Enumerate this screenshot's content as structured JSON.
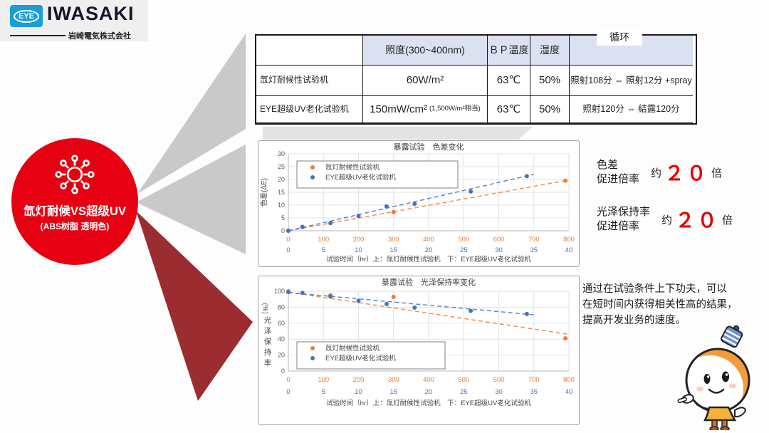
{
  "colors": {
    "brand_red": "#e60012",
    "logo_blue": "#1b9dd9",
    "maroon_triangle": "#9b2d30",
    "gray_triangle": "#c9c9c9",
    "table_header": "#dce1f2",
    "series_orange": "#ED7D31",
    "series_blue": "#4472C4",
    "rate_red": "#e60000"
  },
  "logo": {
    "eye": "EYE",
    "brand": "IWASAKI",
    "company": "岩崎電気株式会社"
  },
  "badge": {
    "title": "氙灯耐候VS超级UV",
    "subtitle": "(ABS树脂 透明色)"
  },
  "table": {
    "headers": {
      "col1": "",
      "illuminance": "照度(300~400nm)",
      "bp_temp": "ＢＰ温度",
      "humidity": "湿度",
      "cycle": "循环"
    },
    "rows": [
      {
        "label": "氙灯耐候性试验机",
        "illuminance": "60W/m²",
        "illuminance_note": "",
        "bp_temp": "63℃",
        "humidity": "50%",
        "cycle": "照射108分 ⇔ 照射12分 +spray"
      },
      {
        "label": "EYE超级UV老化试验机",
        "illuminance": "150mW/cm²",
        "illuminance_note": "(1,500W/m²相当)",
        "bp_temp": "63℃",
        "humidity": "50%",
        "cycle": "照射120分 ⇔ 結露120分"
      }
    ]
  },
  "rates": [
    {
      "labels": "色差\n促进倍率",
      "prefix": "约",
      "value": "２０",
      "suffix": "倍"
    },
    {
      "labels": "光泽保持率\n促进倍率",
      "prefix": "约",
      "value": "２０",
      "suffix": "倍"
    }
  ],
  "note": "通过在试验条件上下功夫，可以\n在短时间内获得相关性高的结果，\n提高开发业务的速度。",
  "chart_data": [
    {
      "type": "scatter",
      "title": "暴露试验　色差变化",
      "ylabel": "色差(ΔE)",
      "ylabel_mode": "rotated",
      "xlabel": "试验时间（hr）上：氙灯耐候性试验机　下：EYE超级UV老化试验机",
      "ylim": [
        0,
        30
      ],
      "yticks": [
        0,
        5,
        10,
        15,
        20,
        25,
        30
      ],
      "grid": true,
      "legend_pos": "top-left",
      "x_top": {
        "range": [
          0,
          800
        ],
        "ticks": [
          0,
          100,
          200,
          300,
          400,
          500,
          600,
          700,
          800
        ],
        "color": "#ED7D31"
      },
      "x_bottom": {
        "range": [
          0,
          40
        ],
        "ticks": [
          0,
          5,
          10,
          15,
          20,
          25,
          30,
          35,
          40
        ],
        "color": "#4472C4"
      },
      "series": [
        {
          "name": "氙灯耐候性试验机",
          "color": "#ED7D31",
          "x_scale": "top",
          "x": [
            0,
            40,
            300,
            790
          ],
          "y": [
            0,
            1.5,
            7.3,
            19.5
          ],
          "trend": {
            "x1": 0,
            "y1": 0,
            "x2": 800,
            "y2": 19.8
          }
        },
        {
          "name": "EYE超级UV老化试验机",
          "color": "#4472C4",
          "x_scale": "bottom",
          "x": [
            0,
            2,
            6,
            10,
            14,
            18,
            26,
            34
          ],
          "y": [
            0,
            1.5,
            3,
            5.8,
            9.5,
            10.5,
            15.3,
            21.3
          ],
          "trend": {
            "x1": 0,
            "y1": 0,
            "x2": 35,
            "y2": 22
          }
        }
      ]
    },
    {
      "type": "scatter",
      "title": "暴露试验　光泽保持率变化",
      "ylabel": "（%） 光泽保持率",
      "ylabel_mode": "stacked",
      "xlabel": "试验时间（hr）上：氙灯耐候性试验机　下：EYE超级UV老化试验机",
      "ylim": [
        0,
        100
      ],
      "yticks": [
        0,
        20,
        40,
        60,
        80,
        100
      ],
      "grid": true,
      "legend_pos": "bottom-left",
      "x_top": {
        "range": [
          0,
          800
        ],
        "ticks": [
          0,
          100,
          200,
          300,
          400,
          500,
          600,
          700,
          800
        ],
        "color": "#ED7D31"
      },
      "x_bottom": {
        "range": [
          0,
          40
        ],
        "ticks": [
          0,
          5,
          10,
          15,
          20,
          25,
          30,
          35,
          40
        ],
        "color": "#4472C4"
      },
      "series": [
        {
          "name": "氙灯耐候性试验机",
          "color": "#ED7D31",
          "x_scale": "top",
          "x": [
            0,
            120,
            300,
            790
          ],
          "y": [
            100,
            95,
            93,
            41
          ],
          "trend": {
            "x1": 0,
            "y1": 99,
            "x2": 800,
            "y2": 46
          }
        },
        {
          "name": "EYE超级UV老化试验机",
          "color": "#4472C4",
          "x_scale": "bottom",
          "x": [
            0,
            2,
            6,
            10,
            14,
            18,
            26,
            34
          ],
          "y": [
            99,
            98,
            93.5,
            88,
            84,
            79.5,
            75.5,
            71.5
          ],
          "trend": {
            "x1": 0,
            "y1": 98.5,
            "x2": 35,
            "y2": 70.5
          }
        }
      ]
    }
  ]
}
